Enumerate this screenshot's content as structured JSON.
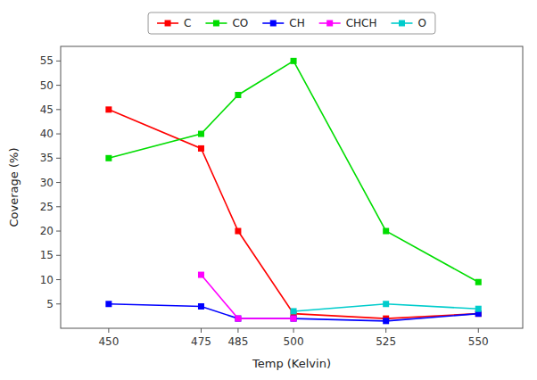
{
  "chart_data": {
    "type": "line",
    "x": [
      450,
      475,
      485,
      500,
      525,
      550
    ],
    "series": [
      {
        "name": "C",
        "color": "#ff0000",
        "values": [
          45,
          37,
          20,
          3,
          2,
          3
        ]
      },
      {
        "name": "CO",
        "color": "#00dd00",
        "values": [
          35,
          40,
          48,
          55,
          20,
          9.5
        ]
      },
      {
        "name": "CH",
        "color": "#0000ff",
        "values": [
          5,
          4.5,
          2,
          2,
          1.5,
          3
        ]
      },
      {
        "name": "CHCH",
        "color": "#ff00ff",
        "values": [
          null,
          11,
          2,
          2,
          null,
          null
        ]
      },
      {
        "name": "O",
        "color": "#00cccc",
        "values": [
          null,
          null,
          null,
          3.5,
          5,
          4
        ]
      }
    ],
    "xlabel": "Temp (Kelvin)",
    "ylabel": "Coverage (%)",
    "xlim": [
      437,
      562
    ],
    "ylim": [
      0,
      58
    ],
    "xticks": [
      450,
      475,
      485,
      500,
      525,
      550
    ],
    "yticks": [
      5,
      10,
      15,
      20,
      25,
      30,
      35,
      40,
      45,
      50,
      55
    ],
    "marker": "square",
    "legend": "top",
    "grid": false
  }
}
